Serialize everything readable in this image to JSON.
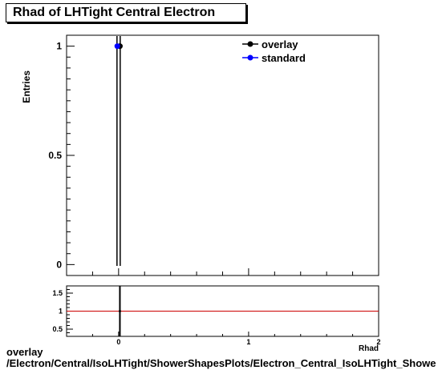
{
  "title": "Rhad of LHTight Central  Electron",
  "footer": {
    "line1": "overlay",
    "line2": "/Electron/Central/IsoLHTight/ShowerShapesPlots/Electron_Central_IsoLHTight_Showe"
  },
  "chart_data": [
    {
      "type": "scatter",
      "title": "Rhad of LHTight Central  Electron",
      "ylabel": "Entries",
      "xlabel": "",
      "xlim": [
        -0.4,
        2
      ],
      "ylim": [
        -0.05,
        1.05
      ],
      "x_tick_labels": [
        "0",
        "1",
        "2"
      ],
      "y_tick_labels": [
        "0",
        "0.5",
        "1"
      ],
      "legend_placement": "top-right",
      "series": [
        {
          "name": "overlay",
          "color": "#000000",
          "points": [
            {
              "x": 0.01,
              "y": 1
            }
          ]
        },
        {
          "name": "standard",
          "color": "#0000ff",
          "points": [
            {
              "x": -0.01,
              "y": 1
            }
          ]
        }
      ]
    },
    {
      "type": "line",
      "title": "",
      "xlabel": "Rhad",
      "ylabel": "",
      "xlim": [
        -0.4,
        2
      ],
      "ylim": [
        0.3,
        1.7
      ],
      "y_tick_labels": [
        "0.5",
        "1",
        "1.5"
      ],
      "reference_line": {
        "y": 1,
        "color": "#cc0000"
      },
      "points": [
        {
          "x": 0.01,
          "y": 1
        }
      ]
    }
  ]
}
